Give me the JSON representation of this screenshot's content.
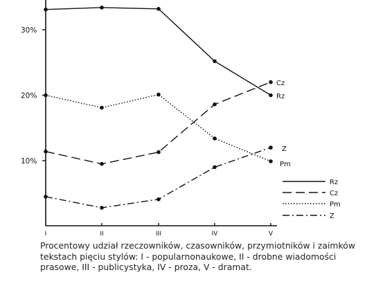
{
  "chart_data": {
    "type": "line",
    "title": "",
    "xlabel": "",
    "ylabel": "",
    "categories": [
      "I",
      "II",
      "III",
      "IV",
      "V"
    ],
    "ylim": [
      0,
      35
    ],
    "y_ticks": [
      {
        "value": 10,
        "label": "10%"
      },
      {
        "value": 20,
        "label": "20%"
      },
      {
        "value": 30,
        "label": "30%"
      }
    ],
    "grid": false,
    "legend_position": "bottom-right",
    "series": [
      {
        "key": "rz",
        "name": "Rz",
        "style": "solid",
        "values": [
          33.1,
          33.4,
          33.2,
          25.2,
          20.0
        ],
        "end_label": "Rz"
      },
      {
        "key": "cz",
        "name": "Cz",
        "style": "dashed",
        "values": [
          11.4,
          9.5,
          11.3,
          18.6,
          22.0
        ],
        "end_label": "Cz"
      },
      {
        "key": "pm",
        "name": "Pm",
        "style": "dotted",
        "values": [
          20.0,
          18.1,
          20.1,
          13.4,
          9.9
        ],
        "end_label": "Pm"
      },
      {
        "key": "z",
        "name": "Z",
        "style": "dashdot",
        "values": [
          4.5,
          2.8,
          4.1,
          9.0,
          12.0
        ],
        "end_label": "Z"
      }
    ]
  },
  "caption": "Procentowy udział rzeczowników, czasowników, przymiotników i zaimków  tekstach pięciu stylów: I - popularnonaukowe, II - drobne wiadomości prasowe, III - publicystyka, IV - proza, V - dramat."
}
